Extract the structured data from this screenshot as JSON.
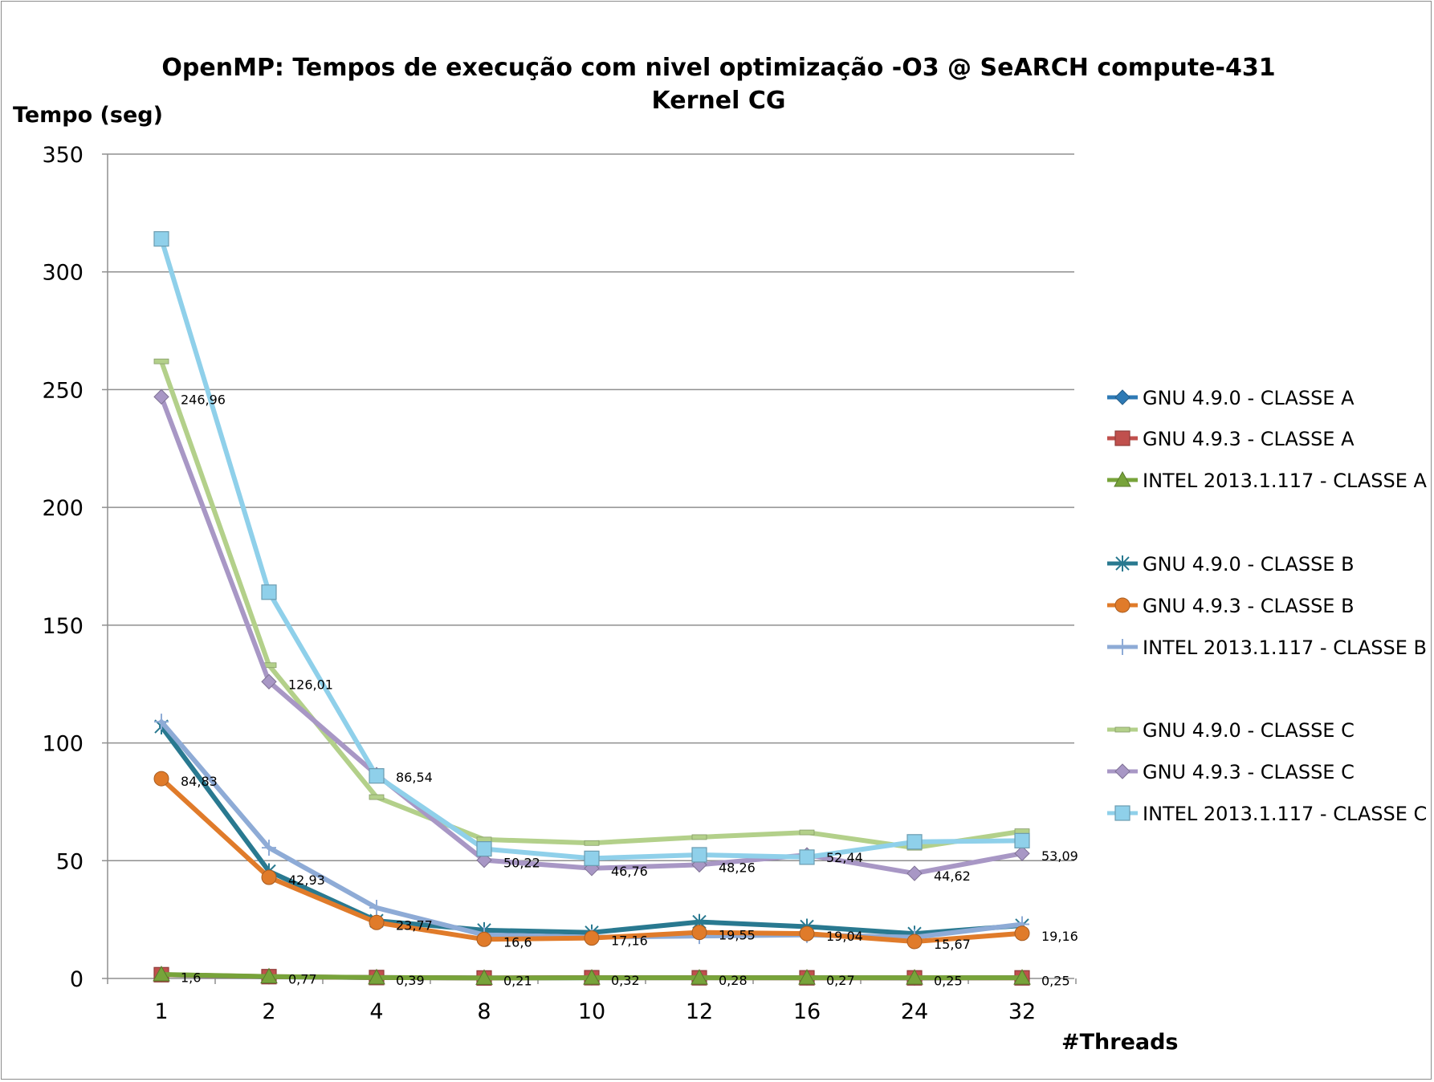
{
  "chart_data": {
    "type": "line",
    "title": "OpenMP: Tempos de execução com nivel optimização -O3 @ SeARCH compute-431",
    "subtitle": "Kernel CG",
    "xlabel": "#Threads",
    "ylabel": "Tempo (seg)",
    "categories": [
      "1",
      "2",
      "4",
      "8",
      "10",
      "12",
      "16",
      "24",
      "32"
    ],
    "ylim": [
      0,
      350
    ],
    "yticks": [
      "0",
      "50",
      "100",
      "150",
      "200",
      "250",
      "300",
      "350"
    ],
    "ytick_values": [
      0,
      50,
      100,
      150,
      200,
      250,
      300,
      350
    ],
    "grid": true,
    "legend_position": "right",
    "series": [
      {
        "name": "GNU 4.9.0 - CLASSE A",
        "values": [
          1.6,
          0.7,
          0.4,
          0.2,
          0.3,
          0.3,
          0.3,
          0.2,
          0.3
        ],
        "color": "#2e7ab5",
        "marker": "diamond",
        "labels": []
      },
      {
        "name": "GNU 4.9.3 - CLASSE A",
        "values": [
          1.6,
          0.77,
          0.39,
          0.21,
          0.32,
          0.28,
          0.27,
          0.25,
          0.25
        ],
        "color": "#c0504d",
        "marker": "square",
        "labels": [
          "1,6",
          "0,77",
          "0,39",
          "0,21",
          "0,32",
          "0,28",
          "0,27",
          "0,25",
          "0,25"
        ]
      },
      {
        "name": "INTEL 2013.1.117 - CLASSE A",
        "values": [
          1.7,
          0.8,
          0.4,
          0.2,
          0.3,
          0.3,
          0.3,
          0.3,
          0.3
        ],
        "color": "#77a33a",
        "marker": "triangle",
        "labels": []
      },
      {
        "name": "GNU 4.9.0 - CLASSE B",
        "values": [
          107,
          45.5,
          24.5,
          20.5,
          19.5,
          24,
          22,
          19,
          22.5
        ],
        "color": "#297990",
        "marker": "star",
        "labels": []
      },
      {
        "name": "GNU 4.9.3 - CLASSE B",
        "values": [
          84.83,
          42.93,
          23.77,
          16.6,
          17.16,
          19.55,
          19.04,
          15.67,
          19.16
        ],
        "color": "#e07b2a",
        "marker": "circle",
        "labels": [
          "84,83",
          "42,93",
          "23,77",
          "16,6",
          "17,16",
          "19,55",
          "19,04",
          "15,67",
          "19,16"
        ]
      },
      {
        "name": "INTEL 2013.1.117 - CLASSE B",
        "values": [
          109,
          55.5,
          30,
          18.5,
          17.5,
          18,
          18.5,
          17.5,
          23
        ],
        "color": "#8eabd6",
        "marker": "plus",
        "labels": []
      },
      {
        "name": "GNU 4.9.0 - CLASSE C",
        "values": [
          262,
          133,
          77,
          59,
          57.5,
          60,
          62,
          55.5,
          62.5
        ],
        "color": "#b3d08a",
        "marker": "dash",
        "labels": []
      },
      {
        "name": "GNU 4.9.3 - CLASSE C",
        "values": [
          246.96,
          126.01,
          86.54,
          50.22,
          46.76,
          48.26,
          52.44,
          44.62,
          53.09
        ],
        "color": "#a897c5",
        "marker": "diamond",
        "labels": [
          "246,96",
          "126,01",
          "86,54",
          "50,22",
          "46,76",
          "48,26",
          "52,44",
          "44,62",
          "53,09"
        ]
      },
      {
        "name": "INTEL 2013.1.117 - CLASSE C",
        "values": [
          314,
          164,
          86,
          55,
          51,
          52.5,
          51.5,
          58,
          58.5
        ],
        "color": "#8fd0ea",
        "marker": "square",
        "labels": []
      }
    ]
  }
}
